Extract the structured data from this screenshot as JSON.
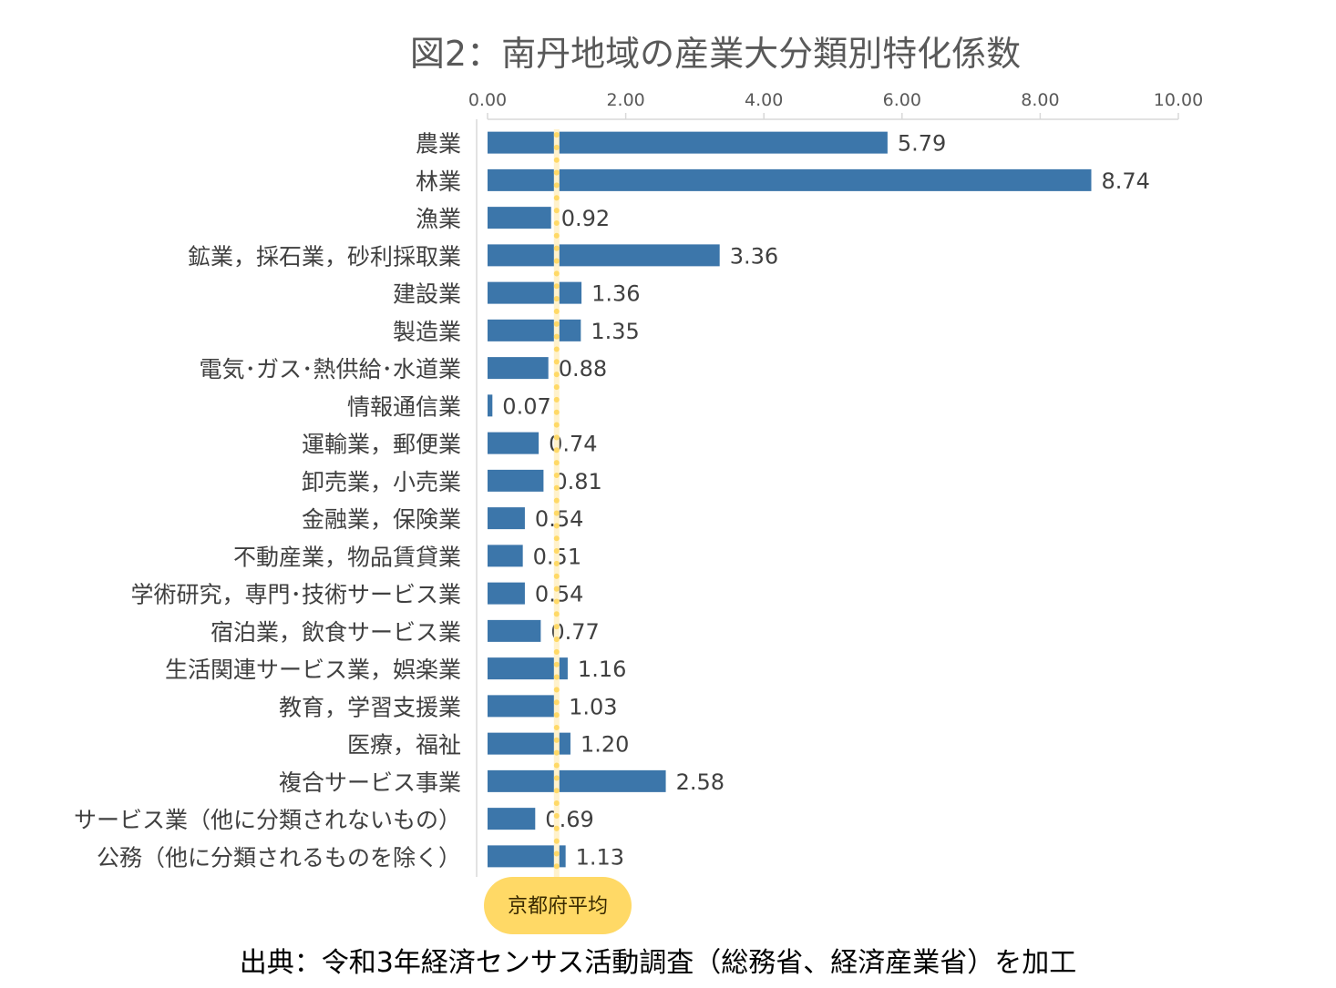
{
  "chart_data": {
    "type": "bar",
    "orientation": "horizontal",
    "title": "図2：南丹地域の産業大分類別特化係数",
    "categories": [
      "農業",
      "林業",
      "漁業",
      "鉱業，採石業，砂利採取業",
      "建設業",
      "製造業",
      "電気･ガス･熱供給･水道業",
      "情報通信業",
      "運輸業，郵便業",
      "卸売業，小売業",
      "金融業，保険業",
      "不動産業，物品賃貸業",
      "学術研究，専門･技術サービス業",
      "宿泊業，飲食サービス業",
      "生活関連サービス業，娯楽業",
      "教育，学習支援業",
      "医療，福祉",
      "複合サービス事業",
      "サービス業（他に分類されないもの）",
      "公務（他に分類されるものを除く）"
    ],
    "values": [
      5.79,
      8.74,
      0.92,
      3.36,
      1.36,
      1.35,
      0.88,
      0.07,
      0.74,
      0.81,
      0.54,
      0.51,
      0.54,
      0.77,
      1.16,
      1.03,
      1.2,
      2.58,
      0.69,
      1.13
    ],
    "value_labels": [
      "5.79",
      "8.74",
      "0.92",
      "3.36",
      "1.36",
      "1.35",
      "0.88",
      "0.07",
      "0.74",
      "0.81",
      "0.54",
      "0.51",
      "0.54",
      "0.77",
      "1.16",
      "1.03",
      "1.20",
      "2.58",
      "0.69",
      "1.13"
    ],
    "xlim": [
      0,
      10
    ],
    "x_ticks": [
      0,
      2,
      4,
      6,
      8,
      10
    ],
    "x_tick_labels": [
      "0.00",
      "2.00",
      "4.00",
      "6.00",
      "8.00",
      "10.00"
    ],
    "axis_position": "top",
    "grid": false,
    "reference_line": {
      "label": "京都府平均",
      "value": 1.0,
      "color": "#FFD966"
    },
    "bar_color": "#3C76AA",
    "source": "出典：令和3年経済センサス活動調査（総務省、経済産業省）を加工"
  }
}
